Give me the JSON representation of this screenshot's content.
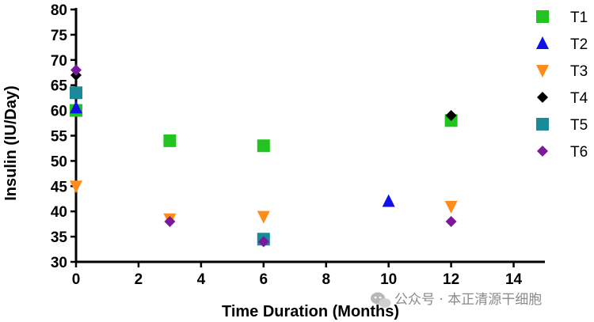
{
  "chart_data": {
    "type": "scatter",
    "xlabel": "Time Duration (Months)",
    "ylabel": "Insulin (IU/Day)",
    "xlim": [
      0,
      15
    ],
    "ylim": [
      30,
      80
    ],
    "xticks": [
      "0",
      "2",
      "4",
      "6",
      "8",
      "10",
      "12",
      "14"
    ],
    "yticks": [
      "30",
      "35",
      "40",
      "45",
      "50",
      "55",
      "60",
      "65",
      "70",
      "75",
      "80"
    ],
    "grid": false,
    "legend_position": "top-right",
    "series": [
      {
        "name": "T1",
        "color": "#22c51f",
        "marker": "square",
        "points": [
          [
            0,
            60
          ],
          [
            3,
            54
          ],
          [
            6,
            53
          ],
          [
            12,
            58
          ]
        ]
      },
      {
        "name": "T2",
        "color": "#1010e8",
        "marker": "triangle-up",
        "points": [
          [
            0,
            60.5
          ],
          [
            10,
            42
          ]
        ]
      },
      {
        "name": "T3",
        "color": "#ff8c1a",
        "marker": "triangle-down",
        "points": [
          [
            0,
            45
          ],
          [
            3,
            38.5
          ],
          [
            6,
            39
          ],
          [
            12,
            41
          ]
        ]
      },
      {
        "name": "T4",
        "color": "#000000",
        "marker": "diamond",
        "points": [
          [
            0,
            67
          ],
          [
            12,
            59
          ]
        ]
      },
      {
        "name": "T5",
        "color": "#1a8a9a",
        "marker": "square",
        "points": [
          [
            0,
            63.5
          ],
          [
            6,
            34.5
          ]
        ]
      },
      {
        "name": "T6",
        "color": "#7a1a9a",
        "marker": "diamond",
        "points": [
          [
            0,
            68
          ],
          [
            3,
            38
          ],
          [
            6,
            34
          ],
          [
            12,
            38
          ]
        ]
      }
    ]
  },
  "watermark": {
    "text": "公众号 · 本正清源干细胞",
    "icon": "wechat-icon"
  }
}
